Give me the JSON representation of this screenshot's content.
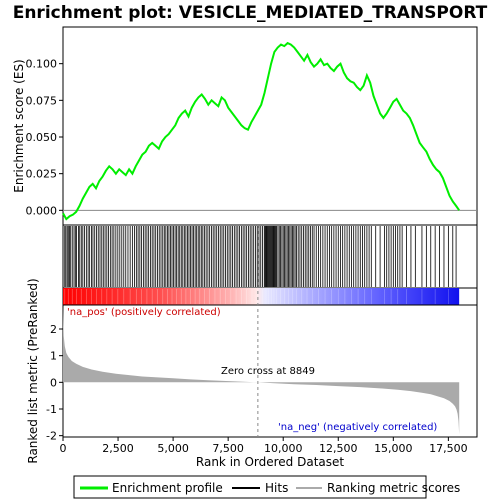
{
  "chart_data": {
    "type": "line",
    "title": "Enrichment plot: VESICLE_MEDIATED_TRANSPORT",
    "es_panel": {
      "ylabel": "Enrichment score (ES)",
      "yticks": [
        "0.000",
        "0.025",
        "0.050",
        "0.075",
        "0.100"
      ],
      "ytick_values": [
        0,
        0.025,
        0.05,
        0.075,
        0.1
      ],
      "ylim": [
        -0.01,
        0.125
      ],
      "series": [
        {
          "name": "Enrichment profile",
          "color": "#00ee00",
          "x": [
            0,
            150,
            300,
            450,
            600,
            750,
            900,
            1050,
            1200,
            1350,
            1500,
            1650,
            1800,
            1950,
            2100,
            2250,
            2400,
            2550,
            2700,
            2850,
            3000,
            3150,
            3300,
            3450,
            3600,
            3750,
            3900,
            4050,
            4200,
            4350,
            4500,
            4650,
            4800,
            4950,
            5100,
            5250,
            5400,
            5550,
            5700,
            5850,
            6000,
            6150,
            6300,
            6450,
            6600,
            6750,
            6900,
            7050,
            7200,
            7350,
            7500,
            7650,
            7800,
            7950,
            8100,
            8250,
            8400,
            8550,
            8700,
            8849,
            9000,
            9150,
            9300,
            9450,
            9600,
            9750,
            9900,
            10050,
            10200,
            10350,
            10500,
            10650,
            10800,
            10950,
            11100,
            11250,
            11400,
            11550,
            11700,
            11850,
            12000,
            12150,
            12300,
            12450,
            12600,
            12750,
            12900,
            13050,
            13200,
            13350,
            13500,
            13650,
            13800,
            13950,
            14100,
            14250,
            14400,
            14550,
            14700,
            14850,
            15000,
            15150,
            15300,
            15450,
            15600,
            15750,
            15900,
            16050,
            16200,
            16350,
            16500,
            16650,
            16800,
            16950,
            17100,
            17250,
            17400,
            17550,
            17700,
            17850,
            17990
          ],
          "y": [
            -0.002,
            -0.006,
            -0.004,
            -0.003,
            -0.001,
            0.003,
            0.008,
            0.012,
            0.016,
            0.018,
            0.015,
            0.02,
            0.023,
            0.027,
            0.03,
            0.028,
            0.025,
            0.028,
            0.026,
            0.024,
            0.028,
            0.025,
            0.03,
            0.034,
            0.038,
            0.04,
            0.044,
            0.046,
            0.044,
            0.042,
            0.047,
            0.05,
            0.052,
            0.055,
            0.058,
            0.063,
            0.066,
            0.068,
            0.064,
            0.07,
            0.074,
            0.077,
            0.079,
            0.076,
            0.072,
            0.075,
            0.073,
            0.071,
            0.077,
            0.075,
            0.07,
            0.067,
            0.064,
            0.061,
            0.058,
            0.056,
            0.055,
            0.06,
            0.064,
            0.068,
            0.072,
            0.08,
            0.09,
            0.1,
            0.108,
            0.111,
            0.113,
            0.112,
            0.114,
            0.113,
            0.111,
            0.108,
            0.105,
            0.102,
            0.106,
            0.101,
            0.098,
            0.1,
            0.103,
            0.099,
            0.1,
            0.097,
            0.095,
            0.098,
            0.1,
            0.094,
            0.09,
            0.088,
            0.087,
            0.084,
            0.082,
            0.085,
            0.092,
            0.087,
            0.078,
            0.072,
            0.066,
            0.063,
            0.066,
            0.07,
            0.074,
            0.076,
            0.072,
            0.068,
            0.066,
            0.063,
            0.058,
            0.052,
            0.046,
            0.043,
            0.04,
            0.035,
            0.031,
            0.028,
            0.026,
            0.022,
            0.016,
            0.01,
            0.006,
            0.003,
            0.0
          ]
        }
      ]
    },
    "hits_panel": {
      "name": "Hits",
      "color": "#000000",
      "hits": [
        80,
        130,
        190,
        240,
        300,
        350,
        420,
        500,
        560,
        610,
        700,
        760,
        830,
        900,
        980,
        1060,
        1140,
        1210,
        1290,
        1360,
        1440,
        1520,
        1600,
        1680,
        1760,
        1830,
        1910,
        1990,
        2070,
        2150,
        2230,
        2310,
        2400,
        2490,
        2580,
        2670,
        2760,
        2850,
        2950,
        3050,
        3150,
        3250,
        3330,
        3410,
        3490,
        3570,
        3650,
        3730,
        3810,
        3890,
        3970,
        4050,
        4130,
        4210,
        4290,
        4370,
        4450,
        4530,
        4600,
        4670,
        4740,
        4810,
        4880,
        4950,
        5020,
        5090,
        5160,
        5230,
        5300,
        5370,
        5440,
        5510,
        5580,
        5650,
        5720,
        5790,
        5860,
        5930,
        6000,
        6070,
        6140,
        6210,
        6280,
        6350,
        6420,
        6500,
        6580,
        6660,
        6740,
        6820,
        6900,
        6980,
        7060,
        7140,
        7220,
        7300,
        7380,
        7460,
        7540,
        7620,
        7700,
        7780,
        7860,
        7940,
        8020,
        8100,
        8180,
        8260,
        8340,
        8420,
        8500,
        8580,
        8660,
        8740,
        8820,
        8900,
        8980,
        9060,
        9140,
        9180,
        9220,
        9260,
        9300,
        9340,
        9380,
        9420,
        9460,
        9500,
        9540,
        9580,
        9620,
        9660,
        9700,
        9760,
        9820,
        9880,
        9940,
        10000,
        10060,
        10120,
        10180,
        10240,
        10300,
        10360,
        10420,
        10480,
        10540,
        10600,
        10680,
        10760,
        10840,
        10920,
        11000,
        11080,
        11160,
        11240,
        11320,
        11400,
        11500,
        11600,
        11700,
        11800,
        11900,
        12000,
        12100,
        12200,
        12300,
        12400,
        12500,
        12600,
        12700,
        12800,
        12900,
        13000,
        13100,
        13200,
        13300,
        13400,
        13500,
        13600,
        13700,
        13800,
        13900,
        14000,
        14200,
        14400,
        14600,
        14700,
        14800,
        14900,
        15000,
        15100,
        15200,
        15300,
        15400,
        15600,
        15800,
        16000,
        16300,
        16500,
        16700,
        16900,
        17100,
        17300,
        17500,
        17700,
        17850
      ]
    },
    "rank_panel": {
      "name": "Ranking metric scores",
      "color": "#aaaaaa",
      "ylabel": "Ranked list metric (PreRanked)",
      "xlabel": "Rank in Ordered Dataset",
      "yticks": [
        "-2",
        "-1",
        "0",
        "1",
        "2"
      ],
      "ytick_values": [
        -2,
        -1,
        0,
        1,
        2
      ],
      "ylim": [
        -2.05,
        2.9
      ],
      "xticks": [
        "0",
        "2,500",
        "5,000",
        "7,500",
        "10,000",
        "12,500",
        "15,000",
        "17,500"
      ],
      "xtick_values": [
        0,
        2500,
        5000,
        7500,
        10000,
        12500,
        15000,
        17500
      ],
      "xlim": [
        0,
        18800
      ],
      "x": [
        0,
        30,
        80,
        150,
        250,
        400,
        600,
        900,
        1300,
        1800,
        2400,
        3000,
        3600,
        4200,
        5000,
        5800,
        6600,
        7400,
        8200,
        8849,
        9500,
        10500,
        11500,
        12500,
        13500,
        14500,
        15200,
        15800,
        16300,
        16700,
        17000,
        17300,
        17550,
        17700,
        17800,
        17870,
        17920,
        17960,
        17990
      ],
      "y": [
        2.9,
        1.75,
        1.35,
        1.1,
        0.95,
        0.8,
        0.7,
        0.58,
        0.48,
        0.4,
        0.32,
        0.27,
        0.22,
        0.19,
        0.15,
        0.11,
        0.08,
        0.05,
        0.02,
        0.0,
        -0.03,
        -0.07,
        -0.1,
        -0.14,
        -0.18,
        -0.23,
        -0.28,
        -0.33,
        -0.39,
        -0.45,
        -0.52,
        -0.6,
        -0.7,
        -0.8,
        -0.9,
        -1.02,
        -1.18,
        -1.45,
        -1.95
      ]
    },
    "annotations": {
      "pos_label": "'na_pos' (positively correlated)",
      "neg_label": "'na_neg' (negatively correlated)",
      "zero_cross": "Zero cross at 8849",
      "zero_cross_rank": 8849,
      "max_rank": 17990
    },
    "legend": {
      "placement": "bottom",
      "entries": [
        "Enrichment profile",
        "Hits",
        "Ranking metric scores"
      ]
    }
  }
}
